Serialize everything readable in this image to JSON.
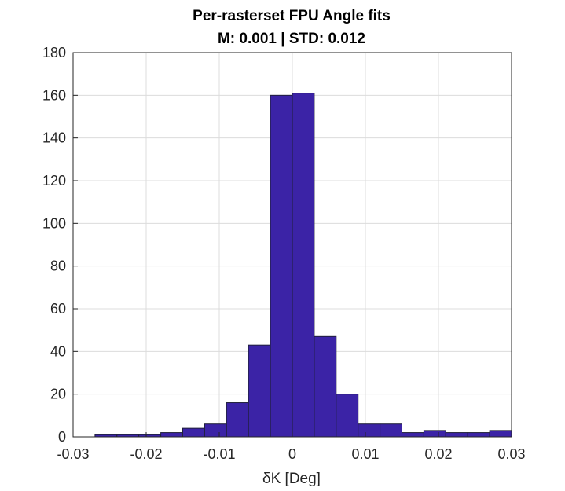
{
  "chart_data": {
    "type": "bar",
    "title": "Per-rasterset FPU Angle fits",
    "subtitle": "M: 0.001 | STD: 0.012",
    "xlabel": "δK [Deg]",
    "ylabel": "",
    "xlim": [
      -0.03,
      0.03
    ],
    "ylim": [
      0,
      180
    ],
    "xticks": [
      "-0.03",
      "-0.02",
      "-0.01",
      "0",
      "0.01",
      "0.02",
      "0.03"
    ],
    "xtick_values": [
      -0.03,
      -0.02,
      -0.01,
      0,
      0.01,
      0.02,
      0.03
    ],
    "yticks": [
      "0",
      "20",
      "40",
      "60",
      "80",
      "100",
      "120",
      "140",
      "160",
      "180"
    ],
    "ytick_values": [
      0,
      20,
      40,
      60,
      80,
      100,
      120,
      140,
      160,
      180
    ],
    "grid": true,
    "bar_color": "#3b23a6",
    "bin_width": 0.003,
    "bin_edges": [
      -0.027,
      -0.024,
      -0.021,
      -0.018,
      -0.015,
      -0.012,
      -0.009,
      -0.006,
      -0.003,
      0.0,
      0.003,
      0.006,
      0.009,
      0.012,
      0.015,
      0.018,
      0.021,
      0.024,
      0.027
    ],
    "values": [
      1,
      1,
      1,
      2,
      4,
      6,
      16,
      43,
      160,
      161,
      47,
      20,
      6,
      6,
      2,
      3,
      2,
      2,
      3
    ]
  }
}
